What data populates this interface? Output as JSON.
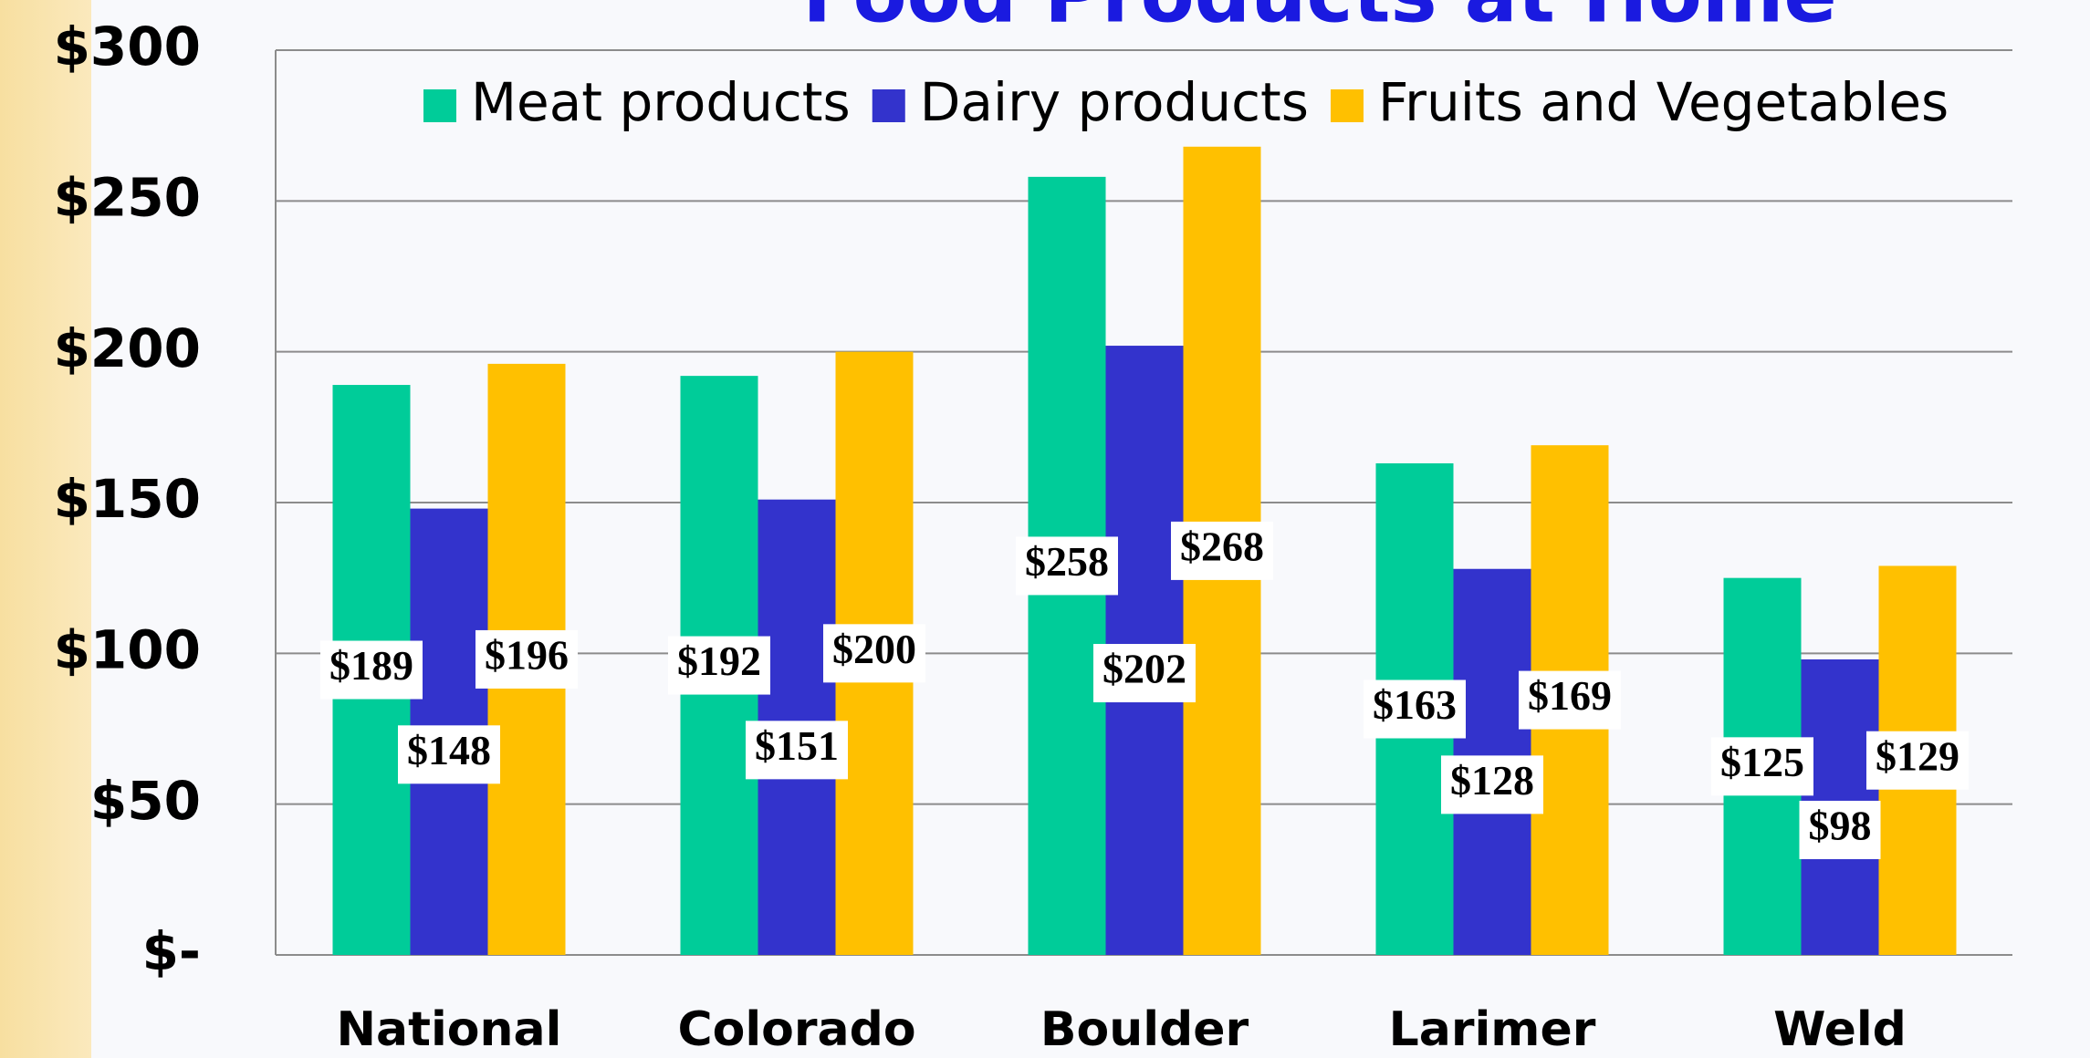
{
  "chart_data": {
    "type": "bar",
    "title": "Food Products at Home",
    "categories": [
      "National",
      "Colorado",
      "Boulder",
      "Larimer",
      "Weld"
    ],
    "series": [
      {
        "name": "Meat products",
        "color": "#00cc99",
        "values": [
          189,
          192,
          258,
          163,
          125
        ],
        "value_labels": [
          "$189",
          "$192",
          "$258",
          "$163",
          "$125"
        ]
      },
      {
        "name": "Dairy products",
        "color": "#3333cc",
        "values": [
          148,
          151,
          202,
          128,
          98
        ],
        "value_labels": [
          "$148",
          "$151",
          "$202",
          "$128",
          "$98"
        ]
      },
      {
        "name": "Fruits and Vegetables",
        "color": "#ffc000",
        "values": [
          196,
          200,
          268,
          169,
          129
        ],
        "value_labels": [
          "$196",
          "$200",
          "$268",
          "$169",
          "$129"
        ]
      }
    ],
    "ylim": [
      0,
      300
    ],
    "yticks": [
      {
        "value": 0,
        "label": "$-"
      },
      {
        "value": 50,
        "label": "$50"
      },
      {
        "value": 100,
        "label": "$100"
      },
      {
        "value": 150,
        "label": "$150"
      },
      {
        "value": 200,
        "label": "$200"
      },
      {
        "value": 250,
        "label": "$250"
      },
      {
        "value": 300,
        "label": "$300"
      }
    ],
    "grid": true,
    "legend": "top"
  }
}
